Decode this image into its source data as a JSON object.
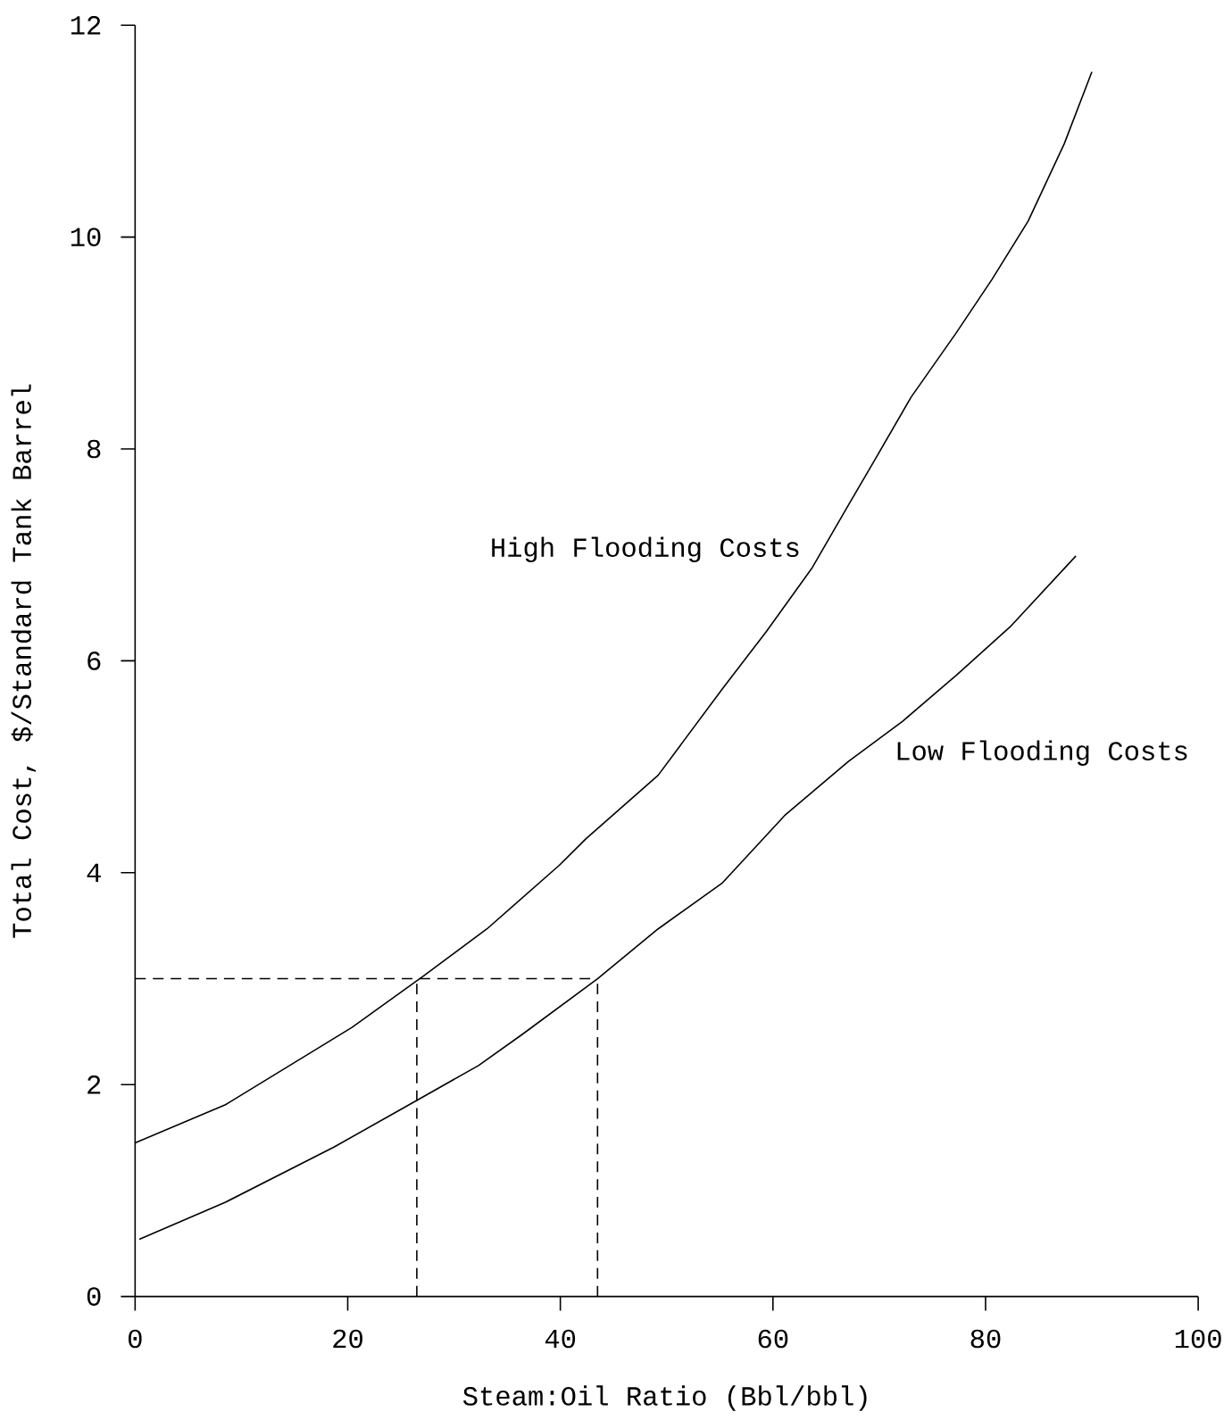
{
  "chart_data": {
    "type": "line",
    "xlabel": "Steam:Oil Ratio (Bbl/bbl)",
    "ylabel": "Total Cost, $/Standard Tank Barrel",
    "xlim": [
      0,
      100
    ],
    "ylim": [
      0,
      12
    ],
    "xticks": [
      0,
      20,
      40,
      60,
      80,
      100
    ],
    "yticks": [
      0,
      2,
      4,
      6,
      8,
      10,
      12
    ],
    "grid": false,
    "legend": false,
    "series": [
      {
        "name": "High Flooding Costs",
        "color": "#000000",
        "line_style": "solid",
        "x": [
          0,
          8.5,
          20.4,
          27.2,
          33.1,
          39.9,
          42.4,
          49.2,
          55.2,
          59.4,
          63.7,
          67.1,
          69.6,
          73,
          77.2,
          80.6,
          84,
          87.4,
          90
        ],
        "values": [
          1.45,
          1.81,
          2.54,
          3.03,
          3.47,
          4.07,
          4.32,
          4.92,
          5.73,
          6.28,
          6.88,
          7.47,
          7.9,
          8.49,
          9.09,
          9.6,
          10.15,
          10.88,
          11.56
        ]
      },
      {
        "name": "Low Flooding Costs",
        "color": "#000000",
        "line_style": "solid",
        "x": [
          0.4,
          8.5,
          18.7,
          26.3,
          32.3,
          36.5,
          43.5,
          49.2,
          55.2,
          61.1,
          67.1,
          72.2,
          77.2,
          82.3,
          88.5
        ],
        "values": [
          0.54,
          0.89,
          1.41,
          1.84,
          2.18,
          2.48,
          3.0,
          3.47,
          3.9,
          4.54,
          5.05,
          5.43,
          5.86,
          6.32,
          6.99
        ]
      },
      {
        "color": "#000000",
        "line_style": "dashed",
        "x": [
          0,
          43.5
        ],
        "values": [
          3,
          3
        ]
      },
      {
        "color": "#000000",
        "line_style": "dashed",
        "x": [
          26.5,
          26.5
        ],
        "values": [
          0,
          3
        ]
      },
      {
        "color": "#000000",
        "line_style": "dashed",
        "x": [
          43.5,
          43.5
        ],
        "values": [
          0,
          3
        ]
      }
    ]
  }
}
